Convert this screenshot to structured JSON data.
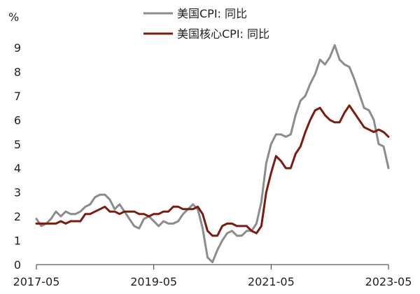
{
  "chart_data": {
    "type": "line",
    "ylabel": "%",
    "ylim": [
      0,
      9
    ],
    "y_ticks": [
      "0",
      "1",
      "2",
      "3",
      "4",
      "5",
      "6",
      "7",
      "8",
      "9"
    ],
    "x_ticks": [
      "2017-05",
      "2019-05",
      "2021-05",
      "2023-05"
    ],
    "x_start": "2017-05",
    "x_end": "2023-05",
    "legend_position": "top-center",
    "grid": false,
    "series": [
      {
        "name": "美国CPI: 同比",
        "color": "#8c8c8c",
        "values": [
          1.9,
          1.6,
          1.7,
          1.9,
          2.2,
          2.0,
          2.2,
          2.1,
          2.1,
          2.2,
          2.4,
          2.5,
          2.8,
          2.9,
          2.9,
          2.7,
          2.3,
          2.5,
          2.2,
          1.9,
          1.6,
          1.5,
          1.9,
          2.0,
          1.8,
          1.6,
          1.8,
          1.7,
          1.7,
          1.8,
          2.1,
          2.3,
          2.5,
          2.3,
          1.5,
          0.3,
          0.1,
          0.6,
          1.0,
          1.3,
          1.4,
          1.2,
          1.2,
          1.4,
          1.4,
          1.7,
          2.6,
          4.2,
          5.0,
          5.4,
          5.4,
          5.3,
          5.4,
          6.2,
          6.8,
          7.0,
          7.5,
          7.9,
          8.5,
          8.3,
          8.6,
          9.1,
          8.5,
          8.3,
          8.2,
          7.7,
          7.1,
          6.5,
          6.4,
          6.0,
          5.0,
          4.9,
          4.0
        ]
      },
      {
        "name": "美国核心CPI: 同比",
        "color": "#7b1c0e",
        "values": [
          1.7,
          1.7,
          1.7,
          1.7,
          1.7,
          1.8,
          1.7,
          1.8,
          1.8,
          1.8,
          2.1,
          2.1,
          2.2,
          2.3,
          2.4,
          2.2,
          2.2,
          2.1,
          2.2,
          2.2,
          2.2,
          2.1,
          2.1,
          2.0,
          2.1,
          2.1,
          2.2,
          2.2,
          2.4,
          2.4,
          2.3,
          2.3,
          2.3,
          2.4,
          2.1,
          1.4,
          1.2,
          1.2,
          1.6,
          1.7,
          1.7,
          1.6,
          1.6,
          1.6,
          1.4,
          1.3,
          1.6,
          3.0,
          3.8,
          4.5,
          4.3,
          4.0,
          4.0,
          4.6,
          4.9,
          5.5,
          6.0,
          6.4,
          6.5,
          6.2,
          6.0,
          5.9,
          5.9,
          6.3,
          6.6,
          6.3,
          6.0,
          5.7,
          5.6,
          5.5,
          5.6,
          5.5,
          5.3
        ]
      }
    ]
  }
}
